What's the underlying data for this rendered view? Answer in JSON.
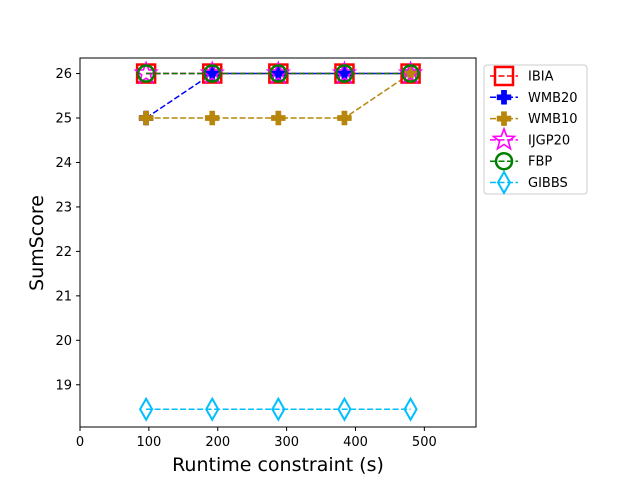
{
  "chart_data": {
    "type": "line",
    "xlabel": "Runtime constraint (s)",
    "ylabel": "SumScore",
    "xlim": [
      0,
      575
    ],
    "ylim": [
      18.05,
      26.35
    ],
    "xticks": [
      0,
      100,
      200,
      300,
      400,
      500
    ],
    "yticks": [
      19,
      20,
      21,
      22,
      23,
      24,
      25,
      26
    ],
    "x": [
      96,
      192,
      288,
      384,
      480
    ],
    "legend_position": "upper-right-outside",
    "series": [
      {
        "name": "IBIA",
        "values": [
          26,
          26,
          26,
          26,
          26
        ],
        "color": "#ff0000",
        "marker": "square",
        "marker_fill": "none"
      },
      {
        "name": "WMB20",
        "values": [
          25,
          26,
          26,
          26,
          26
        ],
        "color": "#0000ff",
        "marker": "plus",
        "marker_fill": "solid"
      },
      {
        "name": "WMB10",
        "values": [
          25,
          25,
          25,
          25,
          26
        ],
        "color": "#b8860b",
        "marker": "plus",
        "marker_fill": "solid"
      },
      {
        "name": "IJGP20",
        "values": [
          26,
          26,
          26,
          26,
          26
        ],
        "color": "#ff00ff",
        "marker": "star",
        "marker_fill": "none"
      },
      {
        "name": "FBP",
        "values": [
          26,
          26,
          26,
          26,
          26
        ],
        "color": "#008000",
        "marker": "circle",
        "marker_fill": "none"
      },
      {
        "name": "GIBBS",
        "values": [
          18.45,
          18.45,
          18.45,
          18.45,
          18.45
        ],
        "color": "#00bfff",
        "marker": "diamond",
        "marker_fill": "none"
      }
    ]
  }
}
